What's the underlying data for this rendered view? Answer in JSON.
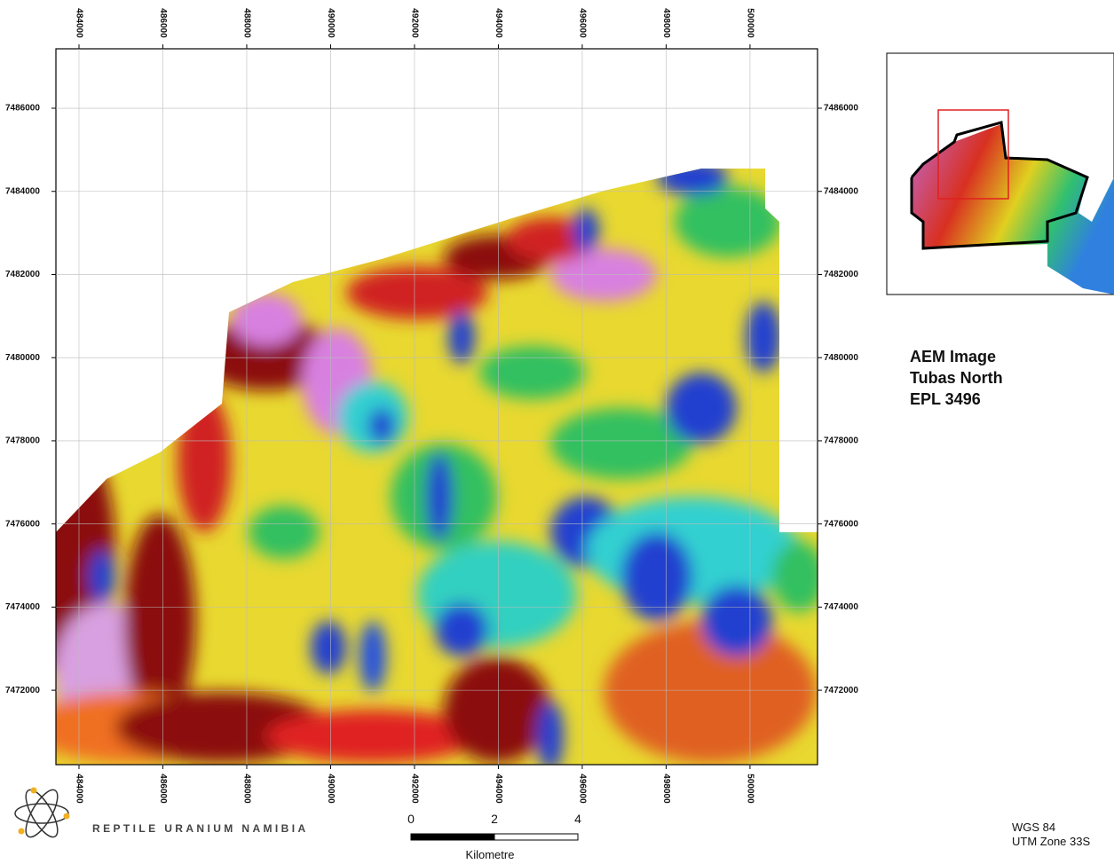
{
  "map": {
    "xlim": [
      483450,
      501610
    ],
    "ylim": [
      7470210,
      7487430
    ],
    "eastings": [
      484000,
      486000,
      488000,
      490000,
      492000,
      494000,
      496000,
      498000,
      500000
    ],
    "northings": [
      7472000,
      7474000,
      7476000,
      7478000,
      7480000,
      7482000,
      7484000,
      7486000
    ]
  },
  "legend": {
    "title": [
      "AEM Image",
      "Tubas North",
      "EPL 3496"
    ]
  },
  "company": "REPTILE URANIUM NAMIBIA",
  "scale_bar": {
    "ticks": [
      0,
      2,
      4
    ],
    "unit": "Kilometre"
  },
  "projection": [
    "WGS 84",
    "UTM Zone 33S"
  ]
}
